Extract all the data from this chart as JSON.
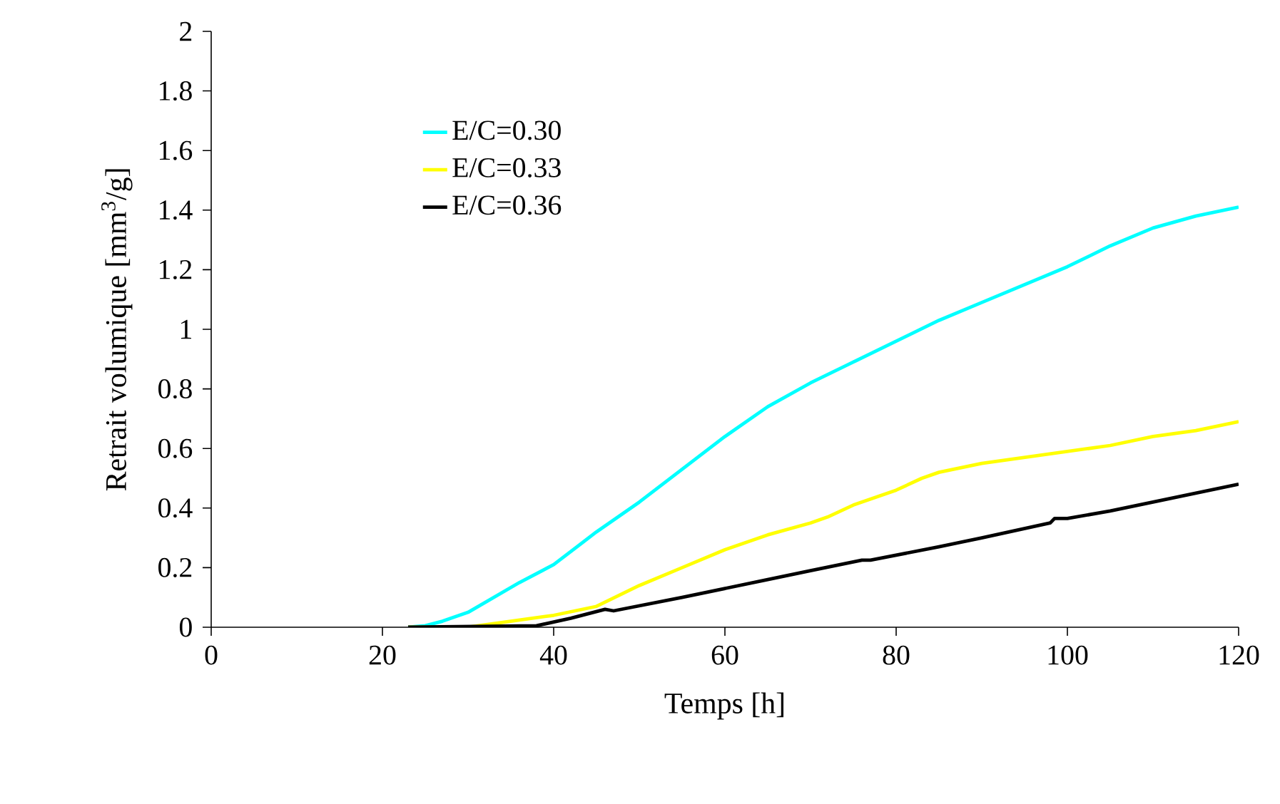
{
  "chart_data": {
    "type": "line",
    "xlabel": "Temps [h]",
    "ylabel": "Retrait volumique [mm$^{3}$/g]",
    "xlim": [
      0,
      120
    ],
    "ylim": [
      0,
      2
    ],
    "xticks": [
      0,
      20,
      40,
      60,
      80,
      100,
      120
    ],
    "yticks": [
      0,
      0.2,
      0.4,
      0.6,
      0.8,
      1,
      1.2,
      1.4,
      1.6,
      1.8,
      2
    ],
    "grid": false,
    "legend": "top left",
    "marker": "none",
    "line_style": "solid",
    "series": [
      {
        "name": "E/C=0.30",
        "color": "#00ffff",
        "x": [
          23,
          25,
          27,
          30,
          33,
          36,
          40,
          45,
          50,
          55,
          60,
          65,
          70,
          75,
          80,
          85,
          90,
          95,
          100,
          105,
          110,
          115,
          120
        ],
        "values": [
          0,
          0.005,
          0.02,
          0.05,
          0.1,
          0.15,
          0.21,
          0.32,
          0.42,
          0.53,
          0.64,
          0.74,
          0.82,
          0.89,
          0.96,
          1.03,
          1.09,
          1.15,
          1.21,
          1.28,
          1.34,
          1.38,
          1.41
        ]
      },
      {
        "name": "E/C=0.33",
        "color": "#ffff00",
        "x": [
          23,
          30,
          35,
          40,
          45,
          50,
          55,
          60,
          65,
          70,
          72,
          75,
          80,
          83,
          85,
          90,
          95,
          100,
          105,
          110,
          115,
          120
        ],
        "values": [
          0,
          0,
          0.02,
          0.04,
          0.07,
          0.14,
          0.2,
          0.26,
          0.31,
          0.35,
          0.37,
          0.41,
          0.46,
          0.5,
          0.52,
          0.55,
          0.57,
          0.59,
          0.61,
          0.64,
          0.66,
          0.69
        ]
      },
      {
        "name": "E/C=0.36",
        "color": "#000000",
        "x": [
          23,
          38,
          42,
          46,
          47,
          55,
          60,
          65,
          70,
          76,
          77,
          85,
          90,
          98,
          98.5,
          100,
          105,
          110,
          115,
          120
        ],
        "values": [
          0,
          0.005,
          0.03,
          0.06,
          0.055,
          0.1,
          0.13,
          0.16,
          0.19,
          0.225,
          0.225,
          0.27,
          0.3,
          0.35,
          0.365,
          0.365,
          0.39,
          0.42,
          0.45,
          0.48
        ]
      }
    ]
  }
}
